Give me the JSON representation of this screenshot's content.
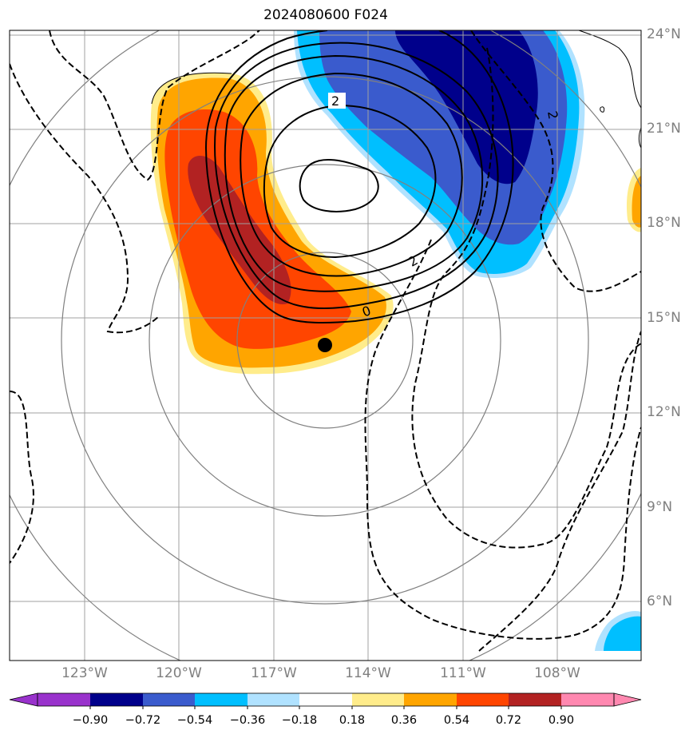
{
  "title": "2024080600 F024",
  "lat_labels": [
    "24°N",
    "21°N",
    "18°N",
    "15°N",
    "12°N",
    "9°N",
    "6°N"
  ],
  "lon_labels": [
    "123°W",
    "120°W",
    "117°W",
    "114°W",
    "111°W",
    "108°W"
  ],
  "contour_labels": [
    "2",
    "2",
    "0",
    "2"
  ],
  "colorbar": {
    "labels": [
      "−0.90",
      "−0.72",
      "−0.54",
      "−0.36",
      "−0.18",
      "0.18",
      "0.36",
      "0.54",
      "0.72",
      "0.90"
    ],
    "colors": [
      "#9932cc",
      "#00008b",
      "#3a5bcd",
      "#00bfff",
      "#b0e2ff",
      "#ffffff",
      "#ffec8b",
      "#ffa500",
      "#ff4500",
      "#b22222",
      "#ff88b0"
    ]
  },
  "colors": {
    "grid": "#a0a0a0",
    "range_rings": "#808080",
    "contour": "#000000",
    "marker": "#000000"
  }
}
